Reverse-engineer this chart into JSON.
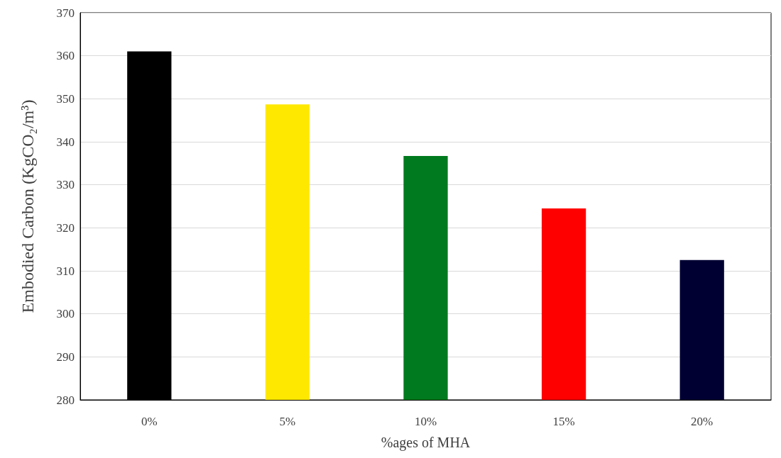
{
  "chart_data": {
    "type": "bar",
    "xlabel": "%ages of MHA",
    "ylabel": "Embodied Carbon (KgCO₂/m³)",
    "categories": [
      "0%",
      "5%",
      "10%",
      "15%",
      "20%"
    ],
    "values": [
      361,
      348.7,
      336.7,
      324.5,
      312.5
    ],
    "colors": [
      "#000000",
      "#ffe800",
      "#007a1e",
      "#ff0000",
      "#000033"
    ],
    "ylim": [
      280,
      370
    ],
    "yticks": [
      280,
      290,
      300,
      310,
      320,
      330,
      340,
      350,
      360,
      370
    ],
    "grid": "y"
  }
}
